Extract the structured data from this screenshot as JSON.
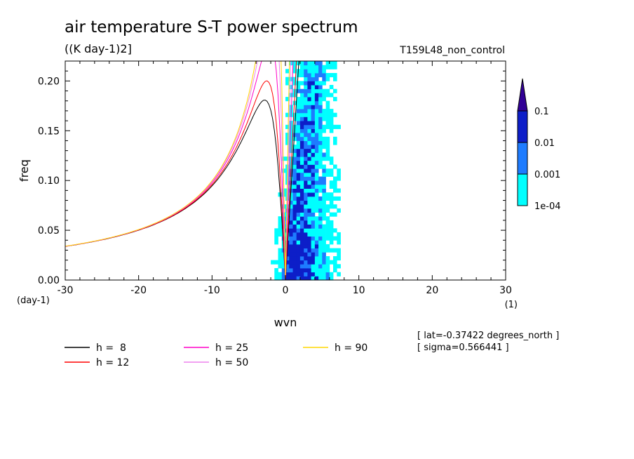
{
  "chart_data": {
    "type": "contour",
    "title": "air temperature S-T power spectrum",
    "units": "((K day-1)2]",
    "experiment": "T159L48_non_control",
    "xlabel": "wvn",
    "ylabel": "freq",
    "x_unit": "(1)",
    "y_unit": "(day-1)",
    "xlim": [
      -30,
      30
    ],
    "ylim": [
      0,
      0.22
    ],
    "x_ticks": [
      "-30",
      "-20",
      "-10",
      "0",
      "10",
      "20",
      "30"
    ],
    "y_ticks": [
      "0.00",
      "0.05",
      "0.10",
      "0.15",
      "0.20"
    ],
    "colorbar": {
      "labels": [
        "1e-04",
        "0.001",
        "0.01",
        "0.1"
      ],
      "colors": [
        "#00ffff",
        "#1e7cff",
        "#0d1ec8",
        "#320096"
      ]
    },
    "series": [
      {
        "name": "h =  8",
        "color": "#000000",
        "h": 8
      },
      {
        "name": "h = 12",
        "color": "#ff0000",
        "h": 12
      },
      {
        "name": "h = 25",
        "color": "#ff00c8",
        "h": 25
      },
      {
        "name": "h = 50",
        "color": "#ee82ee",
        "h": 50
      },
      {
        "name": "h = 90",
        "color": "#ffd700",
        "h": 90
      }
    ],
    "annotations": [
      "[ lat=-0.37422 degrees_north ]",
      "[ sigma=0.566441 ]"
    ]
  }
}
